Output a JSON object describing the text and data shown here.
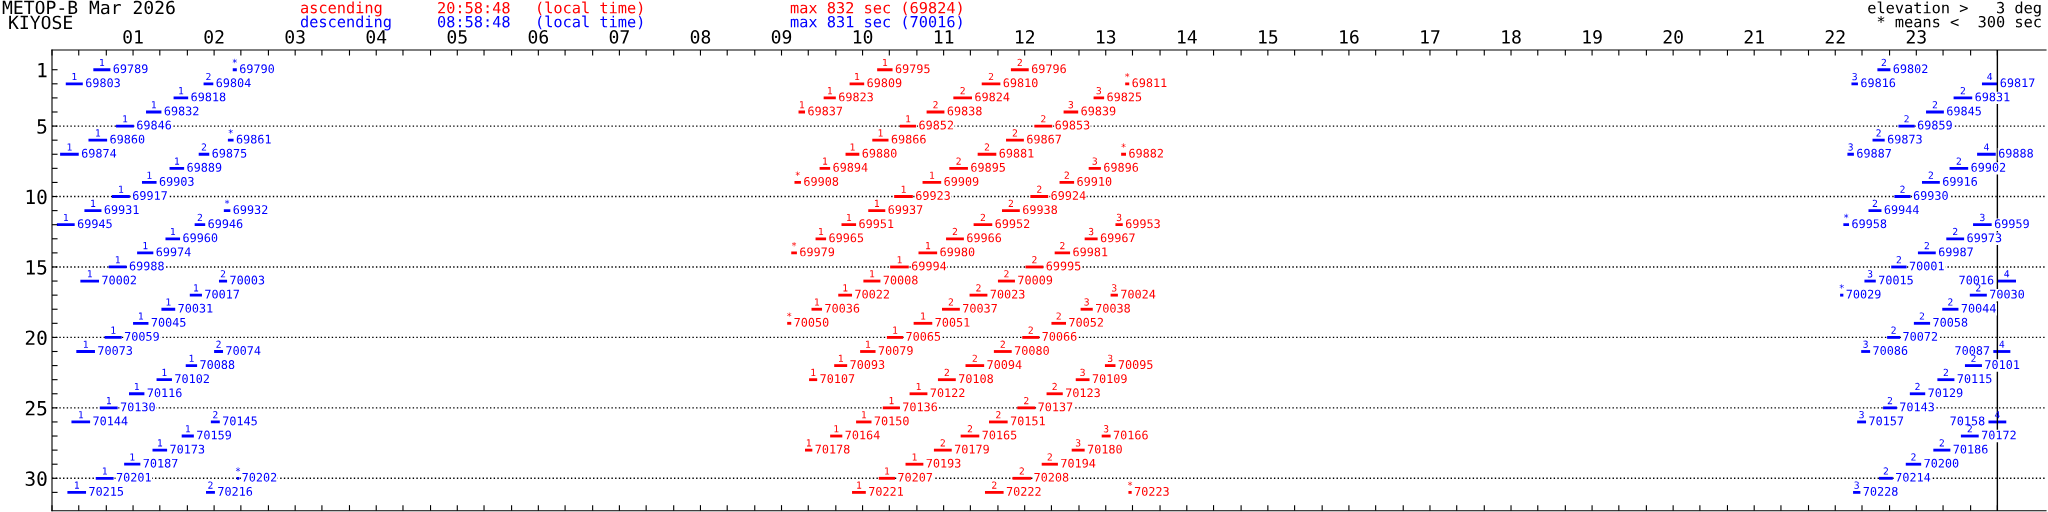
{
  "chart_data": {
    "type": "bar",
    "orientation": "horizontal",
    "title": "METOP-B Mar 2026",
    "subtitle": "KIYOSE",
    "legend": "top",
    "xlim": [
      0,
      24.6
    ],
    "ylim": [
      32.3,
      -0.4
    ],
    "xticks": [
      {
        "value": 0,
        "label": null
      },
      {
        "value": 0.33,
        "label": null
      },
      {
        "value": 0.67,
        "label": null
      },
      {
        "value": 1,
        "label": "01"
      },
      {
        "value": 1.33,
        "label": null
      },
      {
        "value": 1.67,
        "label": null
      },
      {
        "value": 2,
        "label": "02"
      },
      {
        "value": 2.33,
        "label": null
      },
      {
        "value": 2.67,
        "label": null
      },
      {
        "value": 3,
        "label": "03"
      },
      {
        "value": 3.33,
        "label": null
      },
      {
        "value": 3.67,
        "label": null
      },
      {
        "value": 4,
        "label": "04"
      },
      {
        "value": 4.33,
        "label": null
      },
      {
        "value": 4.67,
        "label": null
      },
      {
        "value": 5,
        "label": "05"
      },
      {
        "value": 5.33,
        "label": null
      },
      {
        "value": 5.67,
        "label": null
      },
      {
        "value": 6,
        "label": "06"
      },
      {
        "value": 6.33,
        "label": null
      },
      {
        "value": 6.67,
        "label": null
      },
      {
        "value": 7,
        "label": "07"
      },
      {
        "value": 7.33,
        "label": null
      },
      {
        "value": 7.67,
        "label": null
      },
      {
        "value": 8,
        "label": "08"
      },
      {
        "value": 8.33,
        "label": null
      },
      {
        "value": 8.67,
        "label": null
      },
      {
        "value": 9,
        "label": "09"
      },
      {
        "value": 9.33,
        "label": null
      },
      {
        "value": 9.67,
        "label": null
      },
      {
        "value": 10,
        "label": "10"
      },
      {
        "value": 10.33,
        "label": null
      },
      {
        "value": 10.67,
        "label": null
      },
      {
        "value": 11,
        "label": "11"
      },
      {
        "value": 11.33,
        "label": null
      },
      {
        "value": 11.67,
        "label": null
      },
      {
        "value": 12,
        "label": "12"
      },
      {
        "value": 12.33,
        "label": null
      },
      {
        "value": 12.67,
        "label": null
      },
      {
        "value": 13,
        "label": "13"
      },
      {
        "value": 13.33,
        "label": null
      },
      {
        "value": 13.67,
        "label": null
      },
      {
        "value": 14,
        "label": "14"
      },
      {
        "value": 14.33,
        "label": null
      },
      {
        "value": 14.67,
        "label": null
      },
      {
        "value": 15,
        "label": "15"
      },
      {
        "value": 15.33,
        "label": null
      },
      {
        "value": 15.67,
        "label": null
      },
      {
        "value": 16,
        "label": "16"
      },
      {
        "value": 16.33,
        "label": null
      },
      {
        "value": 16.67,
        "label": null
      },
      {
        "value": 17,
        "label": "17"
      },
      {
        "value": 17.33,
        "label": null
      },
      {
        "value": 17.67,
        "label": null
      },
      {
        "value": 18,
        "label": "18"
      },
      {
        "value": 18.33,
        "label": null
      },
      {
        "value": 18.67,
        "label": null
      },
      {
        "value": 19,
        "label": "19"
      },
      {
        "value": 19.33,
        "label": null
      },
      {
        "value": 19.67,
        "label": null
      },
      {
        "value": 20,
        "label": "20"
      },
      {
        "value": 20.33,
        "label": null
      },
      {
        "value": 20.67,
        "label": null
      },
      {
        "value": 21,
        "label": "21"
      },
      {
        "value": 21.33,
        "label": null
      },
      {
        "value": 21.67,
        "label": null
      },
      {
        "value": 22,
        "label": "22"
      },
      {
        "value": 22.33,
        "label": null
      },
      {
        "value": 22.67,
        "label": null
      },
      {
        "value": 23,
        "label": "23"
      },
      {
        "value": 23.33,
        "label": null
      },
      {
        "value": 23.67,
        "label": null
      },
      {
        "value": 24,
        "label": null
      }
    ],
    "yticks": [
      1,
      {
        "value": 2,
        "label": null
      },
      {
        "value": 3,
        "label": null
      },
      {
        "value": 4,
        "label": null
      },
      5,
      {
        "value": 6,
        "label": null
      },
      {
        "value": 7,
        "label": null
      },
      {
        "value": 8,
        "label": null
      },
      {
        "value": 9,
        "label": null
      },
      10,
      {
        "value": 11,
        "label": null
      },
      {
        "value": 12,
        "label": null
      },
      {
        "value": 13,
        "label": null
      },
      {
        "value": 14,
        "label": null
      },
      15,
      {
        "value": 16,
        "label": null
      },
      {
        "value": 17,
        "label": null
      },
      {
        "value": 18,
        "label": null
      },
      {
        "value": 19,
        "label": null
      },
      20,
      {
        "value": 21,
        "label": null
      },
      {
        "value": 22,
        "label": null
      },
      {
        "value": 23,
        "label": null
      },
      {
        "value": 24,
        "label": null
      },
      25,
      {
        "value": 26,
        "label": null
      },
      {
        "value": 27,
        "label": null
      },
      {
        "value": 28,
        "label": null
      },
      {
        "value": 29,
        "label": null
      },
      30,
      {
        "value": 31,
        "label": null
      }
    ],
    "ref_lines": [
      {
        "axis": "x",
        "value": 24,
        "color": "#000000",
        "line_style": "solid"
      },
      {
        "axis": "y",
        "value": 5,
        "color": "#000000",
        "line_style": "dotted"
      },
      {
        "axis": "y",
        "value": 10,
        "color": "#000000",
        "line_style": "dotted"
      },
      {
        "axis": "y",
        "value": 15,
        "color": "#000000",
        "line_style": "dotted"
      },
      {
        "axis": "y",
        "value": 20,
        "color": "#000000",
        "line_style": "dotted"
      },
      {
        "axis": "y",
        "value": 25,
        "color": "#000000",
        "line_style": "dotted"
      },
      {
        "axis": "y",
        "value": 30,
        "color": "#000000",
        "line_style": "dotted"
      }
    ],
    "series": [
      {
        "name": "ascending",
        "color": "#ff0000",
        "x": [
          1,
          2,
          3,
          4,
          5,
          6,
          7,
          8,
          9,
          10,
          11,
          12,
          13,
          14,
          15,
          16,
          17,
          18,
          19,
          20,
          21,
          22,
          23,
          24,
          25,
          26,
          27,
          28,
          29,
          30,
          31
        ],
        "base": [
          10.18,
          9.84,
          9.52,
          9.21,
          10.46,
          10.12,
          9.79,
          9.47,
          9.16,
          10.39,
          10.07,
          9.74,
          9.42,
          9.12,
          10.34,
          10.01,
          9.7,
          9.37,
          9.07,
          10.3,
          9.97,
          9.65,
          9.34,
          10.58,
          10.25,
          9.92,
          9.6,
          9.29,
          10.53,
          10.2,
          9.87
        ],
        "values": [
          0.19,
          0.18,
          0.15,
          0.08,
          0.2,
          0.2,
          0.17,
          0.13,
          0.08,
          0.23,
          0.21,
          0.18,
          0.13,
          0.07,
          0.23,
          0.21,
          0.17,
          0.13,
          0.05,
          0.2,
          0.19,
          0.16,
          0.1,
          0.22,
          0.21,
          0.19,
          0.15,
          0.09,
          0.22,
          0.2,
          0.17
        ]
      },
      {
        "color": "#ff0000",
        "x": [
          1,
          2,
          3,
          4,
          5,
          6,
          7,
          8,
          9,
          10,
          11,
          12,
          13,
          14,
          15,
          16,
          17,
          18,
          19,
          20,
          21,
          22,
          23,
          24,
          25,
          26,
          27,
          28,
          29,
          30,
          31
        ],
        "base": [
          11.83,
          11.47,
          11.12,
          10.79,
          12.12,
          11.77,
          11.42,
          11.07,
          10.74,
          12.07,
          11.72,
          11.37,
          11.03,
          10.69,
          12.01,
          11.67,
          11.32,
          10.98,
          10.63,
          11.97,
          11.62,
          11.27,
          10.93,
          12.27,
          11.91,
          11.56,
          11.21,
          10.88,
          12.21,
          11.85,
          11.51
        ],
        "values": [
          0.22,
          0.23,
          0.23,
          0.22,
          0.22,
          0.22,
          0.23,
          0.23,
          0.23,
          0.22,
          0.22,
          0.23,
          0.22,
          0.23,
          0.22,
          0.21,
          0.22,
          0.22,
          0.23,
          0.21,
          0.22,
          0.23,
          0.22,
          0.2,
          0.22,
          0.23,
          0.23,
          0.22,
          0.2,
          0.23,
          0.23
        ]
      },
      {
        "color": "#ff0000",
        "x": [
          2,
          3,
          4,
          7,
          8,
          9,
          12,
          13,
          14,
          17,
          18,
          19,
          22,
          23,
          27,
          28,
          31
        ],
        "base": [
          13.24,
          12.85,
          12.48,
          13.19,
          12.79,
          12.43,
          13.12,
          12.74,
          12.37,
          13.06,
          12.69,
          12.33,
          12.99,
          12.63,
          12.95,
          12.58,
          13.28
        ],
        "values": [
          0.05,
          0.13,
          0.18,
          0.06,
          0.15,
          0.18,
          0.09,
          0.16,
          0.19,
          0.09,
          0.15,
          0.18,
          0.13,
          0.17,
          0.11,
          0.16,
          0.04
        ]
      },
      {
        "name": "descending",
        "color": "#0000ff",
        "x": [
          1,
          2,
          3,
          4,
          5,
          6,
          7,
          8,
          9,
          10,
          11,
          12,
          13,
          14,
          15,
          16,
          17,
          18,
          19,
          20,
          21,
          22,
          23,
          24,
          25,
          26,
          27,
          28,
          29,
          30,
          31
        ],
        "base": [
          0.51,
          0.17,
          1.5,
          1.16,
          0.79,
          0.45,
          0.1,
          1.45,
          1.11,
          0.74,
          0.4,
          0.06,
          1.4,
          1.05,
          0.7,
          0.35,
          1.7,
          1.35,
          1.0,
          0.65,
          0.3,
          1.65,
          1.29,
          0.95,
          0.59,
          0.24,
          1.6,
          1.24,
          0.89,
          0.54,
          0.19
        ],
        "values": [
          0.21,
          0.21,
          0.18,
          0.19,
          0.22,
          0.23,
          0.23,
          0.18,
          0.18,
          0.22,
          0.21,
          0.22,
          0.18,
          0.2,
          0.22,
          0.23,
          0.15,
          0.17,
          0.19,
          0.21,
          0.23,
          0.14,
          0.19,
          0.19,
          0.22,
          0.23,
          0.15,
          0.18,
          0.2,
          0.22,
          0.23
        ]
      },
      {
        "color": "#0000ff",
        "x": [
          1,
          2,
          3,
          4,
          5,
          6,
          7,
          8,
          9,
          10,
          11,
          12,
          13,
          14,
          15,
          16,
          17,
          18,
          19,
          20,
          21,
          22,
          23,
          24,
          25,
          26,
          27,
          28,
          29,
          30,
          31
        ],
        "base": [
          2.23,
          1.87,
          23.46,
          23.12,
          22.78,
          2.17,
          1.81,
          23.41,
          23.07,
          22.73,
          2.12,
          1.76,
          23.37,
          23.02,
          22.69,
          2.06,
          22.06,
          23.32,
          22.97,
          22.64,
          2.0,
          23.6,
          23.26,
          22.92,
          22.59,
          1.96,
          23.55,
          23.21,
          22.87,
          2.28,
          1.9
        ],
        "values": [
          0.05,
          0.12,
          0.23,
          0.22,
          0.2,
          0.07,
          0.13,
          0.23,
          0.22,
          0.2,
          0.08,
          0.13,
          0.22,
          0.22,
          0.19,
          0.1,
          0.04,
          0.2,
          0.2,
          0.16,
          0.11,
          0.21,
          0.21,
          0.19,
          0.17,
          0.11,
          0.22,
          0.21,
          0.19,
          0.03,
          0.11
        ]
      },
      {
        "color": "#0000ff",
        "x": [
          1,
          2,
          6,
          7,
          11,
          12,
          16,
          17,
          21,
          26,
          30,
          31
        ],
        "base": [
          22.52,
          22.2,
          22.46,
          22.15,
          22.41,
          22.1,
          22.36,
          23.66,
          22.32,
          22.27,
          22.54,
          22.22
        ],
        "values": [
          0.16,
          0.08,
          0.15,
          0.08,
          0.16,
          0.07,
          0.14,
          0.21,
          0.11,
          0.11,
          0.17,
          0.09
        ]
      },
      {
        "color": "#0000ff",
        "x": [
          2,
          7,
          12,
          16,
          21,
          26
        ],
        "base": [
          23.81,
          23.75,
          23.7,
          24.0,
          23.95,
          23.89
        ],
        "values": [
          0.19,
          0.23,
          0.23,
          0.23,
          0.21,
          0.22
        ]
      }
    ],
    "annotations": [
      "20:58:48",
      "(local time)",
      "max 832 sec (69824)",
      "08:58:48",
      "(local time)",
      "max 831 sec (70016)",
      "elevation >   3 deg",
      "* means <  300 sec",
      {
        "text": "1",
        "x": 10.18,
        "y": 1
      },
      {
        "text": "2",
        "x": 11.83,
        "y": 1
      },
      {
        "text": "1",
        "x": 9.84,
        "y": 2
      },
      {
        "text": "2",
        "x": 11.47,
        "y": 2
      },
      {
        "text": "*",
        "x": 13.24,
        "y": 2
      },
      {
        "text": "1",
        "x": 9.52,
        "y": 3
      },
      {
        "text": "2",
        "x": 11.12,
        "y": 3
      },
      {
        "text": "3",
        "x": 12.85,
        "y": 3
      },
      {
        "text": "1",
        "x": 9.21,
        "y": 4
      },
      {
        "text": "2",
        "x": 10.79,
        "y": 4
      },
      {
        "text": "3",
        "x": 12.48,
        "y": 4
      },
      {
        "text": "1",
        "x": 10.46,
        "y": 5
      },
      {
        "text": "2",
        "x": 12.12,
        "y": 5
      },
      {
        "text": "1",
        "x": 10.12,
        "y": 6
      },
      {
        "text": "2",
        "x": 11.77,
        "y": 6
      },
      {
        "text": "1",
        "x": 9.79,
        "y": 7
      },
      {
        "text": "2",
        "x": 11.42,
        "y": 7
      },
      {
        "text": "*",
        "x": 13.19,
        "y": 7
      },
      {
        "text": "1",
        "x": 9.47,
        "y": 8
      },
      {
        "text": "2",
        "x": 11.07,
        "y": 8
      },
      {
        "text": "3",
        "x": 12.79,
        "y": 8
      },
      {
        "text": "*",
        "x": 9.16,
        "y": 9
      },
      {
        "text": "1",
        "x": 10.74,
        "y": 9
      },
      {
        "text": "2",
        "x": 12.43,
        "y": 9
      },
      {
        "text": "1",
        "x": 10.39,
        "y": 10
      },
      {
        "text": "2",
        "x": 12.07,
        "y": 10
      },
      {
        "text": "1",
        "x": 10.07,
        "y": 11
      },
      {
        "text": "2",
        "x": 11.72,
        "y": 11
      },
      {
        "text": "1",
        "x": 9.74,
        "y": 12
      },
      {
        "text": "2",
        "x": 11.37,
        "y": 12
      },
      {
        "text": "3",
        "x": 13.12,
        "y": 12
      },
      {
        "text": "1",
        "x": 9.42,
        "y": 13
      },
      {
        "text": "2",
        "x": 11.03,
        "y": 13
      },
      {
        "text": "3",
        "x": 12.74,
        "y": 13
      },
      {
        "text": "*",
        "x": 9.12,
        "y": 14
      },
      {
        "text": "1",
        "x": 10.69,
        "y": 14
      },
      {
        "text": "2",
        "x": 12.37,
        "y": 14
      },
      {
        "text": "1",
        "x": 10.34,
        "y": 15
      },
      {
        "text": "2",
        "x": 12.01,
        "y": 15
      },
      {
        "text": "1",
        "x": 10.01,
        "y": 16
      },
      {
        "text": "2",
        "x": 11.67,
        "y": 16
      },
      {
        "text": "1",
        "x": 9.7,
        "y": 17
      },
      {
        "text": "2",
        "x": 11.32,
        "y": 17
      },
      {
        "text": "3",
        "x": 13.06,
        "y": 17
      },
      {
        "text": "1",
        "x": 9.37,
        "y": 18
      },
      {
        "text": "2",
        "x": 10.98,
        "y": 18
      },
      {
        "text": "3",
        "x": 12.69,
        "y": 18
      },
      {
        "text": "*",
        "x": 9.07,
        "y": 19
      },
      {
        "text": "1",
        "x": 10.63,
        "y": 19
      },
      {
        "text": "2",
        "x": 12.33,
        "y": 19
      },
      {
        "text": "1",
        "x": 10.3,
        "y": 20
      },
      {
        "text": "2",
        "x": 11.97,
        "y": 20
      },
      {
        "text": "1",
        "x": 9.97,
        "y": 21
      },
      {
        "text": "2",
        "x": 11.62,
        "y": 21
      },
      {
        "text": "1",
        "x": 9.65,
        "y": 22
      },
      {
        "text": "2",
        "x": 11.27,
        "y": 22
      },
      {
        "text": "3",
        "x": 12.99,
        "y": 22
      },
      {
        "text": "1",
        "x": 9.34,
        "y": 23
      },
      {
        "text": "2",
        "x": 10.93,
        "y": 23
      },
      {
        "text": "3",
        "x": 12.63,
        "y": 23
      },
      {
        "text": "1",
        "x": 10.58,
        "y": 24
      },
      {
        "text": "2",
        "x": 12.27,
        "y": 24
      },
      {
        "text": "1",
        "x": 10.25,
        "y": 25
      },
      {
        "text": "2",
        "x": 11.91,
        "y": 25
      },
      {
        "text": "1",
        "x": 9.92,
        "y": 26
      },
      {
        "text": "2",
        "x": 11.56,
        "y": 26
      },
      {
        "text": "1",
        "x": 9.6,
        "y": 27
      },
      {
        "text": "2",
        "x": 11.21,
        "y": 27
      },
      {
        "text": "3",
        "x": 12.95,
        "y": 27
      },
      {
        "text": "1",
        "x": 9.29,
        "y": 28
      },
      {
        "text": "2",
        "x": 10.88,
        "y": 28
      },
      {
        "text": "3",
        "x": 12.58,
        "y": 28
      },
      {
        "text": "1",
        "x": 10.53,
        "y": 29
      },
      {
        "text": "2",
        "x": 12.21,
        "y": 29
      },
      {
        "text": "1",
        "x": 10.2,
        "y": 30
      },
      {
        "text": "2",
        "x": 11.85,
        "y": 30
      },
      {
        "text": "1",
        "x": 9.87,
        "y": 31
      },
      {
        "text": "2",
        "x": 11.51,
        "y": 31
      },
      {
        "text": "*",
        "x": 13.28,
        "y": 31
      },
      {
        "text": "1",
        "x": 0.51,
        "y": 1
      },
      {
        "text": "*",
        "x": 2.23,
        "y": 1
      },
      {
        "text": "2",
        "x": 22.52,
        "y": 1
      },
      {
        "text": "1",
        "x": 0.17,
        "y": 2
      },
      {
        "text": "2",
        "x": 1.87,
        "y": 2
      },
      {
        "text": "3",
        "x": 22.2,
        "y": 2
      },
      {
        "text": "4",
        "x": 23.81,
        "y": 2
      },
      {
        "text": "1",
        "x": 1.5,
        "y": 3
      },
      {
        "text": "2",
        "x": 23.46,
        "y": 3
      },
      {
        "text": "1",
        "x": 1.16,
        "y": 4
      },
      {
        "text": "2",
        "x": 23.12,
        "y": 4
      },
      {
        "text": "1",
        "x": 0.79,
        "y": 5
      },
      {
        "text": "2",
        "x": 22.78,
        "y": 5
      },
      {
        "text": "1",
        "x": 0.45,
        "y": 6
      },
      {
        "text": "*",
        "x": 2.17,
        "y": 6
      },
      {
        "text": "2",
        "x": 22.46,
        "y": 6
      },
      {
        "text": "1",
        "x": 0.1,
        "y": 7
      },
      {
        "text": "2",
        "x": 1.81,
        "y": 7
      },
      {
        "text": "3",
        "x": 22.15,
        "y": 7
      },
      {
        "text": "4",
        "x": 23.75,
        "y": 7
      },
      {
        "text": "1",
        "x": 1.45,
        "y": 8
      },
      {
        "text": "2",
        "x": 23.41,
        "y": 8
      },
      {
        "text": "1",
        "x": 1.11,
        "y": 9
      },
      {
        "text": "2",
        "x": 23.07,
        "y": 9
      },
      {
        "text": "1",
        "x": 0.74,
        "y": 10
      },
      {
        "text": "2",
        "x": 22.73,
        "y": 10
      },
      {
        "text": "1",
        "x": 0.4,
        "y": 11
      },
      {
        "text": "*",
        "x": 2.12,
        "y": 11
      },
      {
        "text": "2",
        "x": 22.41,
        "y": 11
      },
      {
        "text": "1",
        "x": 0.06,
        "y": 12
      },
      {
        "text": "2",
        "x": 1.76,
        "y": 12
      },
      {
        "text": "*",
        "x": 22.1,
        "y": 12
      },
      {
        "text": "3",
        "x": 23.7,
        "y": 12
      },
      {
        "text": "1",
        "x": 1.4,
        "y": 13
      },
      {
        "text": "2",
        "x": 23.37,
        "y": 13
      },
      {
        "text": "1",
        "x": 1.05,
        "y": 14
      },
      {
        "text": "2",
        "x": 23.02,
        "y": 14
      },
      {
        "text": "1",
        "x": 0.7,
        "y": 15
      },
      {
        "text": "2",
        "x": 22.69,
        "y": 15
      },
      {
        "text": "1",
        "x": 0.35,
        "y": 16
      },
      {
        "text": "2",
        "x": 2.06,
        "y": 16
      },
      {
        "text": "3",
        "x": 22.36,
        "y": 16
      },
      {
        "text": "4",
        "x": 24.0,
        "y": 16
      },
      {
        "text": "1",
        "x": 1.7,
        "y": 17
      },
      {
        "text": "*",
        "x": 22.06,
        "y": 17
      },
      {
        "text": "2",
        "x": 23.66,
        "y": 17
      },
      {
        "text": "1",
        "x": 1.35,
        "y": 18
      },
      {
        "text": "2",
        "x": 23.32,
        "y": 18
      },
      {
        "text": "1",
        "x": 1.0,
        "y": 19
      },
      {
        "text": "2",
        "x": 22.97,
        "y": 19
      },
      {
        "text": "1",
        "x": 0.65,
        "y": 20
      },
      {
        "text": "2",
        "x": 22.64,
        "y": 20
      },
      {
        "text": "1",
        "x": 0.3,
        "y": 21
      },
      {
        "text": "2",
        "x": 2.0,
        "y": 21
      },
      {
        "text": "3",
        "x": 22.32,
        "y": 21
      },
      {
        "text": "4",
        "x": 23.95,
        "y": 21
      },
      {
        "text": "1",
        "x": 1.65,
        "y": 22
      },
      {
        "text": "2",
        "x": 23.6,
        "y": 22
      },
      {
        "text": "1",
        "x": 1.29,
        "y": 23
      },
      {
        "text": "2",
        "x": 23.26,
        "y": 23
      },
      {
        "text": "1",
        "x": 0.95,
        "y": 24
      },
      {
        "text": "2",
        "x": 22.92,
        "y": 24
      },
      {
        "text": "1",
        "x": 0.59,
        "y": 25
      },
      {
        "text": "2",
        "x": 22.59,
        "y": 25
      },
      {
        "text": "1",
        "x": 0.24,
        "y": 26
      },
      {
        "text": "2",
        "x": 1.96,
        "y": 26
      },
      {
        "text": "3",
        "x": 22.27,
        "y": 26
      },
      {
        "text": "4",
        "x": 23.89,
        "y": 26
      },
      {
        "text": "1",
        "x": 1.6,
        "y": 27
      },
      {
        "text": "2",
        "x": 23.55,
        "y": 27
      },
      {
        "text": "1",
        "x": 1.24,
        "y": 28
      },
      {
        "text": "2",
        "x": 23.21,
        "y": 28
      },
      {
        "text": "1",
        "x": 0.89,
        "y": 29
      },
      {
        "text": "2",
        "x": 22.87,
        "y": 29
      },
      {
        "text": "1",
        "x": 0.54,
        "y": 30
      },
      {
        "text": "*",
        "x": 2.28,
        "y": 30
      },
      {
        "text": "2",
        "x": 22.54,
        "y": 30
      },
      {
        "text": "1",
        "x": 0.19,
        "y": 31
      },
      {
        "text": "2",
        "x": 1.9,
        "y": 31
      },
      {
        "text": "3",
        "x": 22.22,
        "y": 31
      },
      {
        "text": "69795",
        "x": 10.37,
        "y": 1
      },
      {
        "text": "69796",
        "x": 12.05,
        "y": 1
      },
      {
        "text": "69809",
        "x": 10.02,
        "y": 2
      },
      {
        "text": "69810",
        "x": 11.7,
        "y": 2
      },
      {
        "text": "69811",
        "x": 13.29,
        "y": 2
      },
      {
        "text": "69823",
        "x": 9.67,
        "y": 3
      },
      {
        "text": "69824",
        "x": 11.35,
        "y": 3
      },
      {
        "text": "69825",
        "x": 12.98,
        "y": 3
      },
      {
        "text": "69837",
        "x": 9.29,
        "y": 4
      },
      {
        "text": "69838",
        "x": 11.01,
        "y": 4
      },
      {
        "text": "69839",
        "x": 12.66,
        "y": 4
      },
      {
        "text": "69852",
        "x": 10.66,
        "y": 5
      },
      {
        "text": "69853",
        "x": 12.34,
        "y": 5
      },
      {
        "text": "69866",
        "x": 10.32,
        "y": 6
      },
      {
        "text": "69867",
        "x": 11.99,
        "y": 6
      },
      {
        "text": "69880",
        "x": 9.96,
        "y": 7
      },
      {
        "text": "69881",
        "x": 11.65,
        "y": 7
      },
      {
        "text": "69882",
        "x": 13.25,
        "y": 7
      },
      {
        "text": "69894",
        "x": 9.6,
        "y": 8
      },
      {
        "text": "69895",
        "x": 11.3,
        "y": 8
      },
      {
        "text": "69896",
        "x": 12.94,
        "y": 8
      },
      {
        "text": "69908",
        "x": 9.24,
        "y": 9
      },
      {
        "text": "69909",
        "x": 10.97,
        "y": 9
      },
      {
        "text": "69910",
        "x": 12.61,
        "y": 9
      },
      {
        "text": "69923",
        "x": 10.62,
        "y": 10
      },
      {
        "text": "69924",
        "x": 12.29,
        "y": 10
      },
      {
        "text": "69937",
        "x": 10.28,
        "y": 11
      },
      {
        "text": "69938",
        "x": 11.94,
        "y": 11
      },
      {
        "text": "69951",
        "x": 9.92,
        "y": 12
      },
      {
        "text": "69952",
        "x": 11.6,
        "y": 12
      },
      {
        "text": "69953",
        "x": 13.21,
        "y": 12
      },
      {
        "text": "69965",
        "x": 9.55,
        "y": 13
      },
      {
        "text": "69966",
        "x": 11.25,
        "y": 13
      },
      {
        "text": "69967",
        "x": 12.9,
        "y": 13
      },
      {
        "text": "69979",
        "x": 9.19,
        "y": 14
      },
      {
        "text": "69980",
        "x": 10.92,
        "y": 14
      },
      {
        "text": "69981",
        "x": 12.56,
        "y": 14
      },
      {
        "text": "69994",
        "x": 10.57,
        "y": 15
      },
      {
        "text": "69995",
        "x": 12.23,
        "y": 15
      },
      {
        "text": "70008",
        "x": 10.22,
        "y": 16
      },
      {
        "text": "70009",
        "x": 11.88,
        "y": 16
      },
      {
        "text": "70022",
        "x": 9.87,
        "y": 17
      },
      {
        "text": "70023",
        "x": 11.54,
        "y": 17
      },
      {
        "text": "70024",
        "x": 13.15,
        "y": 17
      },
      {
        "text": "70036",
        "x": 9.5,
        "y": 18
      },
      {
        "text": "70037",
        "x": 11.2,
        "y": 18
      },
      {
        "text": "70038",
        "x": 12.84,
        "y": 18
      },
      {
        "text": "70050",
        "x": 9.12,
        "y": 19
      },
      {
        "text": "70051",
        "x": 10.86,
        "y": 19
      },
      {
        "text": "70052",
        "x": 12.51,
        "y": 19
      },
      {
        "text": "70065",
        "x": 10.5,
        "y": 20
      },
      {
        "text": "70066",
        "x": 12.18,
        "y": 20
      },
      {
        "text": "70079",
        "x": 10.16,
        "y": 21
      },
      {
        "text": "70080",
        "x": 11.84,
        "y": 21
      },
      {
        "text": "70093",
        "x": 9.81,
        "y": 22
      },
      {
        "text": "70094",
        "x": 11.5,
        "y": 22
      },
      {
        "text": "70095",
        "x": 13.12,
        "y": 22
      },
      {
        "text": "70107",
        "x": 9.44,
        "y": 23
      },
      {
        "text": "70108",
        "x": 11.15,
        "y": 23
      },
      {
        "text": "70109",
        "x": 12.8,
        "y": 23
      },
      {
        "text": "70122",
        "x": 10.8,
        "y": 24
      },
      {
        "text": "70123",
        "x": 12.47,
        "y": 24
      },
      {
        "text": "70136",
        "x": 10.46,
        "y": 25
      },
      {
        "text": "70137",
        "x": 12.13,
        "y": 25
      },
      {
        "text": "70150",
        "x": 10.11,
        "y": 26
      },
      {
        "text": "70151",
        "x": 11.79,
        "y": 26
      },
      {
        "text": "70164",
        "x": 9.75,
        "y": 27
      },
      {
        "text": "70165",
        "x": 11.44,
        "y": 27
      },
      {
        "text": "70166",
        "x": 13.06,
        "y": 27
      },
      {
        "text": "70178",
        "x": 9.38,
        "y": 28
      },
      {
        "text": "70179",
        "x": 11.1,
        "y": 28
      },
      {
        "text": "70180",
        "x": 12.74,
        "y": 28
      },
      {
        "text": "70193",
        "x": 10.75,
        "y": 29
      },
      {
        "text": "70194",
        "x": 12.41,
        "y": 29
      },
      {
        "text": "70207",
        "x": 10.4,
        "y": 30
      },
      {
        "text": "70208",
        "x": 12.08,
        "y": 30
      },
      {
        "text": "70221",
        "x": 10.04,
        "y": 31
      },
      {
        "text": "70222",
        "x": 11.74,
        "y": 31
      },
      {
        "text": "70223",
        "x": 13.32,
        "y": 31
      },
      {
        "text": "69789",
        "x": 0.72,
        "y": 1
      },
      {
        "text": "69790",
        "x": 2.28,
        "y": 1
      },
      {
        "text": "69802",
        "x": 22.68,
        "y": 1
      },
      {
        "text": "69803",
        "x": 0.38,
        "y": 2
      },
      {
        "text": "69804",
        "x": 1.99,
        "y": 2
      },
      {
        "text": "69816",
        "x": 22.28,
        "y": 2
      },
      {
        "text": "69817",
        "x": 24.0,
        "y": 2
      },
      {
        "text": "69818",
        "x": 1.68,
        "y": 3
      },
      {
        "text": "69831",
        "x": 23.69,
        "y": 3
      },
      {
        "text": "69832",
        "x": 1.35,
        "y": 4
      },
      {
        "text": "69845",
        "x": 23.34,
        "y": 4
      },
      {
        "text": "69846",
        "x": 1.01,
        "y": 5
      },
      {
        "text": "69859",
        "x": 22.98,
        "y": 5
      },
      {
        "text": "69860",
        "x": 0.68,
        "y": 6
      },
      {
        "text": "69861",
        "x": 2.24,
        "y": 6
      },
      {
        "text": "69873",
        "x": 22.61,
        "y": 6
      },
      {
        "text": "69874",
        "x": 0.33,
        "y": 7
      },
      {
        "text": "69875",
        "x": 1.94,
        "y": 7
      },
      {
        "text": "69887",
        "x": 22.23,
        "y": 7
      },
      {
        "text": "69888",
        "x": 23.98,
        "y": 7
      },
      {
        "text": "69889",
        "x": 1.63,
        "y": 8
      },
      {
        "text": "69902",
        "x": 23.64,
        "y": 8
      },
      {
        "text": "69903",
        "x": 1.29,
        "y": 9
      },
      {
        "text": "69916",
        "x": 23.29,
        "y": 9
      },
      {
        "text": "69917",
        "x": 0.96,
        "y": 10
      },
      {
        "text": "69930",
        "x": 22.93,
        "y": 10
      },
      {
        "text": "69931",
        "x": 0.61,
        "y": 11
      },
      {
        "text": "69932",
        "x": 2.2,
        "y": 11
      },
      {
        "text": "69944",
        "x": 22.57,
        "y": 11
      },
      {
        "text": "69945",
        "x": 0.28,
        "y": 12
      },
      {
        "text": "69946",
        "x": 1.89,
        "y": 12
      },
      {
        "text": "69958",
        "x": 22.17,
        "y": 12
      },
      {
        "text": "69959",
        "x": 23.93,
        "y": 12
      },
      {
        "text": "69960",
        "x": 1.58,
        "y": 13
      },
      {
        "text": "69973",
        "x": 23.59,
        "y": 13
      },
      {
        "text": "69974",
        "x": 1.25,
        "y": 14
      },
      {
        "text": "69987",
        "x": 23.24,
        "y": 14
      },
      {
        "text": "69988",
        "x": 0.92,
        "y": 15
      },
      {
        "text": "70001",
        "x": 22.88,
        "y": 15
      },
      {
        "text": "70002",
        "x": 0.58,
        "y": 16
      },
      {
        "text": "70003",
        "x": 2.16,
        "y": 16
      },
      {
        "text": "70015",
        "x": 22.5,
        "y": 16
      },
      {
        "text": "70016",
        "x": 24.23,
        "y": 16
      },
      {
        "text": "70017",
        "x": 1.85,
        "y": 17
      },
      {
        "text": "70029",
        "x": 22.1,
        "y": 17
      },
      {
        "text": "70030",
        "x": 23.87,
        "y": 17
      },
      {
        "text": "70031",
        "x": 1.52,
        "y": 18
      },
      {
        "text": "70044",
        "x": 23.52,
        "y": 18
      },
      {
        "text": "70045",
        "x": 1.19,
        "y": 19
      },
      {
        "text": "70058",
        "x": 23.17,
        "y": 19
      },
      {
        "text": "70059",
        "x": 0.86,
        "y": 20
      },
      {
        "text": "70072",
        "x": 22.8,
        "y": 20
      },
      {
        "text": "70073",
        "x": 0.53,
        "y": 21
      },
      {
        "text": "70074",
        "x": 2.11,
        "y": 21
      },
      {
        "text": "70086",
        "x": 22.43,
        "y": 21
      },
      {
        "text": "70087",
        "x": 24.16,
        "y": 21
      },
      {
        "text": "70088",
        "x": 1.79,
        "y": 22
      },
      {
        "text": "70101",
        "x": 23.81,
        "y": 22
      },
      {
        "text": "70102",
        "x": 1.48,
        "y": 23
      },
      {
        "text": "70115",
        "x": 23.47,
        "y": 23
      },
      {
        "text": "70116",
        "x": 1.14,
        "y": 24
      },
      {
        "text": "70129",
        "x": 23.11,
        "y": 24
      },
      {
        "text": "70130",
        "x": 0.81,
        "y": 25
      },
      {
        "text": "70143",
        "x": 22.76,
        "y": 25
      },
      {
        "text": "70144",
        "x": 0.47,
        "y": 26
      },
      {
        "text": "70145",
        "x": 2.07,
        "y": 26
      },
      {
        "text": "70157",
        "x": 22.38,
        "y": 26
      },
      {
        "text": "70158",
        "x": 24.11,
        "y": 26
      },
      {
        "text": "70159",
        "x": 1.75,
        "y": 27
      },
      {
        "text": "70172",
        "x": 23.77,
        "y": 27
      },
      {
        "text": "70173",
        "x": 1.42,
        "y": 28
      },
      {
        "text": "70186",
        "x": 23.42,
        "y": 28
      },
      {
        "text": "70187",
        "x": 1.09,
        "y": 29
      },
      {
        "text": "70200",
        "x": 23.06,
        "y": 29
      },
      {
        "text": "70201",
        "x": 0.76,
        "y": 30
      },
      {
        "text": "70202",
        "x": 2.31,
        "y": 30
      },
      {
        "text": "70214",
        "x": 22.71,
        "y": 30
      },
      {
        "text": "70215",
        "x": 0.42,
        "y": 31
      },
      {
        "text": "70216",
        "x": 2.01,
        "y": 31
      },
      {
        "text": "70228",
        "x": 22.31,
        "y": 31
      }
    ]
  }
}
